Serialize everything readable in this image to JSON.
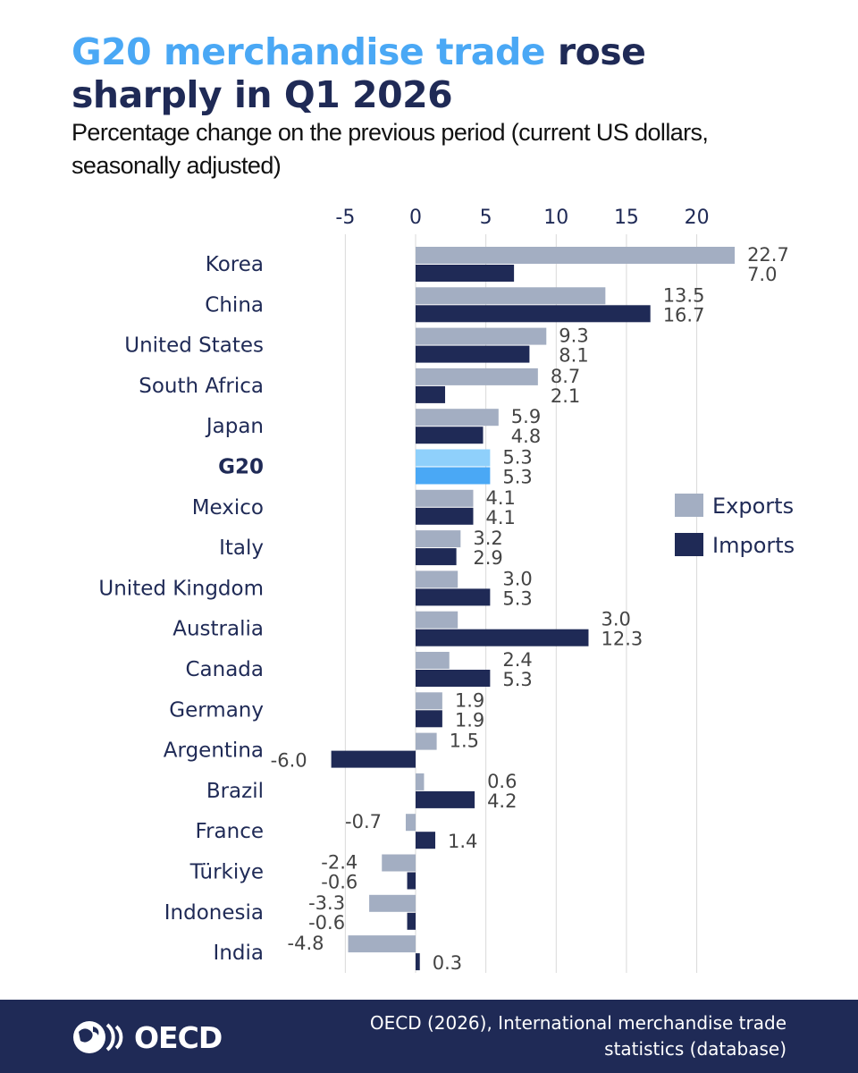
{
  "title": {
    "highlight": "G20 merchandise trade",
    "rest": " rose sharply in Q1 2026"
  },
  "subtitle": "Percentage change on the previous period (current US dollars, seasonally adjusted)",
  "colors": {
    "exports": "#a3aec2",
    "imports": "#1f2a56",
    "g20_exports": "#8fd0fb",
    "g20_imports": "#4aa8f5",
    "grid": "#d9d9d9"
  },
  "chart_data": {
    "type": "bar",
    "orientation": "horizontal",
    "categories": [
      "Korea",
      "China",
      "United States",
      "South Africa",
      "Japan",
      "G20",
      "Mexico",
      "Italy",
      "United Kingdom",
      "Australia",
      "Canada",
      "Germany",
      "Argentina",
      "Brazil",
      "France",
      "Türkiye",
      "Indonesia",
      "India"
    ],
    "highlight_category": "G20",
    "series": [
      {
        "name": "Exports",
        "values": [
          22.7,
          13.5,
          9.3,
          8.7,
          5.9,
          5.3,
          4.1,
          3.2,
          3.0,
          3.0,
          2.4,
          1.9,
          1.5,
          0.6,
          -0.7,
          -2.4,
          -3.3,
          -4.8
        ]
      },
      {
        "name": "Imports",
        "values": [
          7.0,
          16.7,
          8.1,
          2.1,
          4.8,
          5.3,
          4.1,
          2.9,
          5.3,
          12.3,
          5.3,
          1.9,
          -6.0,
          4.2,
          1.4,
          -0.6,
          -0.6,
          0.3
        ]
      }
    ],
    "xticks": [
      -5,
      0,
      5,
      10,
      15,
      20
    ],
    "xlim": [
      -7.5,
      25
    ],
    "axis_position": "top",
    "grid": true,
    "legend": "right"
  },
  "footer": {
    "logo": "OECD",
    "source": "OECD (2026), International merchandise trade statistics (database)"
  }
}
